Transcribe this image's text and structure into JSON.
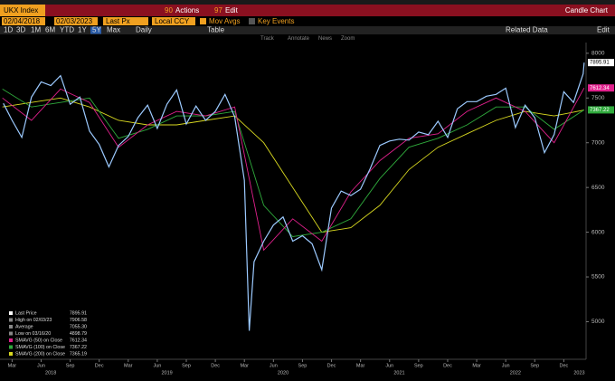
{
  "ui": {
    "ticker": "UKX Index",
    "actions_num": "90",
    "actions": "Actions",
    "edit_num": "97",
    "edit": "Edit",
    "chart_kind": "Candle Chart",
    "start_date": "02/04/2018",
    "end_date": "02/03/2023",
    "price_field": "Last Px",
    "currency": "Local CCY",
    "mov_avgs": "Mov Avgs",
    "key_events": "Key Events",
    "periods": [
      "1D",
      "3D",
      "1M",
      "6M",
      "YTD",
      "1Y",
      "5Y",
      "Max"
    ],
    "frequency": "Daily",
    "table": "Table",
    "related_data": "Related Data",
    "edit2": "Edit",
    "tools": [
      "Track",
      "Annotate",
      "News",
      "Zoom"
    ]
  },
  "chart_data": {
    "type": "line",
    "xlim": [
      -0.25,
      60.3
    ],
    "ylim": [
      4600,
      8120
    ],
    "yticks": [
      5000,
      5500,
      6000,
      6500,
      7000,
      7500,
      8000
    ],
    "xticks": [
      {
        "value": 1,
        "label": "Mar"
      },
      {
        "value": 4,
        "label": "Jun"
      },
      {
        "value": 7,
        "label": "Sep"
      },
      {
        "value": 10,
        "label": "Dec"
      },
      {
        "value": 13,
        "label": "Mar"
      },
      {
        "value": 16,
        "label": "Jun"
      },
      {
        "value": 19,
        "label": "Sep"
      },
      {
        "value": 22,
        "label": "Dec"
      },
      {
        "value": 25,
        "label": "Mar"
      },
      {
        "value": 28,
        "label": "Jun"
      },
      {
        "value": 31,
        "label": "Sep"
      },
      {
        "value": 34,
        "label": "Dec"
      },
      {
        "value": 37,
        "label": "Mar"
      },
      {
        "value": 40,
        "label": "Jun"
      },
      {
        "value": 43,
        "label": "Sep"
      },
      {
        "value": 46,
        "label": "Dec"
      },
      {
        "value": 49,
        "label": "Mar"
      },
      {
        "value": 52,
        "label": "Jun"
      },
      {
        "value": 55,
        "label": "Sep"
      },
      {
        "value": 58,
        "label": "Dec"
      }
    ],
    "year_ticks": [
      {
        "value": 5,
        "label": "2018"
      },
      {
        "value": 17,
        "label": "2019"
      },
      {
        "value": 29,
        "label": "2020"
      },
      {
        "value": 41,
        "label": "2021"
      },
      {
        "value": 53,
        "label": "2022"
      },
      {
        "value": 59.6,
        "label": "2023"
      }
    ],
    "grid": false,
    "series": [
      {
        "name": "Last Price",
        "color": "#9ccaff",
        "x": [
          0.1,
          1,
          2,
          3,
          4,
          5,
          6,
          7,
          8,
          9,
          10,
          11,
          12,
          13,
          14,
          15,
          16,
          17,
          18,
          19,
          20,
          21,
          22,
          23,
          24,
          25,
          25.5,
          26,
          27,
          28,
          29,
          30,
          31,
          32,
          33,
          34,
          35,
          36,
          37,
          38,
          39,
          40,
          41,
          42,
          43,
          44,
          45,
          46,
          47,
          48,
          49,
          50,
          51,
          52,
          53,
          54,
          55,
          56,
          57,
          58,
          59,
          60,
          60.1
        ],
        "values": [
          7440,
          7250,
          7060,
          7510,
          7680,
          7640,
          7750,
          7430,
          7510,
          7130,
          6980,
          6730,
          6970,
          7070,
          7280,
          7420,
          7160,
          7430,
          7590,
          7210,
          7410,
          7250,
          7350,
          7540,
          7290,
          6580,
          4898.79,
          5670,
          5900,
          6080,
          6170,
          5900,
          5960,
          5870,
          5580,
          6270,
          6460,
          6410,
          6480,
          6710,
          6970,
          7020,
          7040,
          7030,
          7120,
          7090,
          7240,
          7060,
          7380,
          7460,
          7460,
          7520,
          7540,
          7610,
          7170,
          7420,
          7280,
          6890,
          7090,
          7570,
          7450,
          7770,
          7895.91
        ]
      },
      {
        "name": "SMAVG (50) on Close",
        "color": "#e0208c",
        "x": [
          0,
          3,
          6,
          9,
          12,
          15,
          18,
          21,
          24,
          27,
          30,
          33,
          36,
          39,
          42,
          45,
          48,
          51,
          54,
          57,
          60.1
        ],
        "values": [
          7500,
          7250,
          7600,
          7450,
          6950,
          7200,
          7350,
          7300,
          7400,
          5800,
          6150,
          5900,
          6450,
          6800,
          7050,
          7100,
          7350,
          7500,
          7350,
          7000,
          7612.34
        ]
      },
      {
        "name": "SMAVG (100) on Close",
        "color": "#2faa3c",
        "x": [
          0,
          3,
          6,
          9,
          12,
          15,
          18,
          21,
          24,
          27,
          30,
          33,
          36,
          39,
          42,
          45,
          48,
          51,
          54,
          57,
          60.1
        ],
        "values": [
          7600,
          7400,
          7450,
          7500,
          7050,
          7150,
          7300,
          7300,
          7350,
          6300,
          5950,
          6000,
          6150,
          6600,
          6950,
          7050,
          7200,
          7400,
          7400,
          7150,
          7367.22
        ]
      },
      {
        "name": "SMAVG (200) on Close",
        "color": "#d8d820",
        "x": [
          0,
          3,
          6,
          9,
          12,
          15,
          18,
          21,
          24,
          27,
          30,
          33,
          36,
          39,
          42,
          45,
          48,
          51,
          54,
          57,
          60.1
        ],
        "values": [
          7400,
          7450,
          7500,
          7400,
          7250,
          7200,
          7200,
          7250,
          7300,
          7000,
          6500,
          6000,
          6050,
          6300,
          6700,
          6950,
          7100,
          7250,
          7350,
          7300,
          7365.19
        ]
      }
    ],
    "stats": [
      {
        "label": "High on 02/03/23",
        "value": 7906.58
      },
      {
        "label": "Average",
        "value": 7055.3,
        "value_label": "7055.30"
      },
      {
        "label": "Low on 03/16/20",
        "value": 4898.79
      }
    ]
  }
}
